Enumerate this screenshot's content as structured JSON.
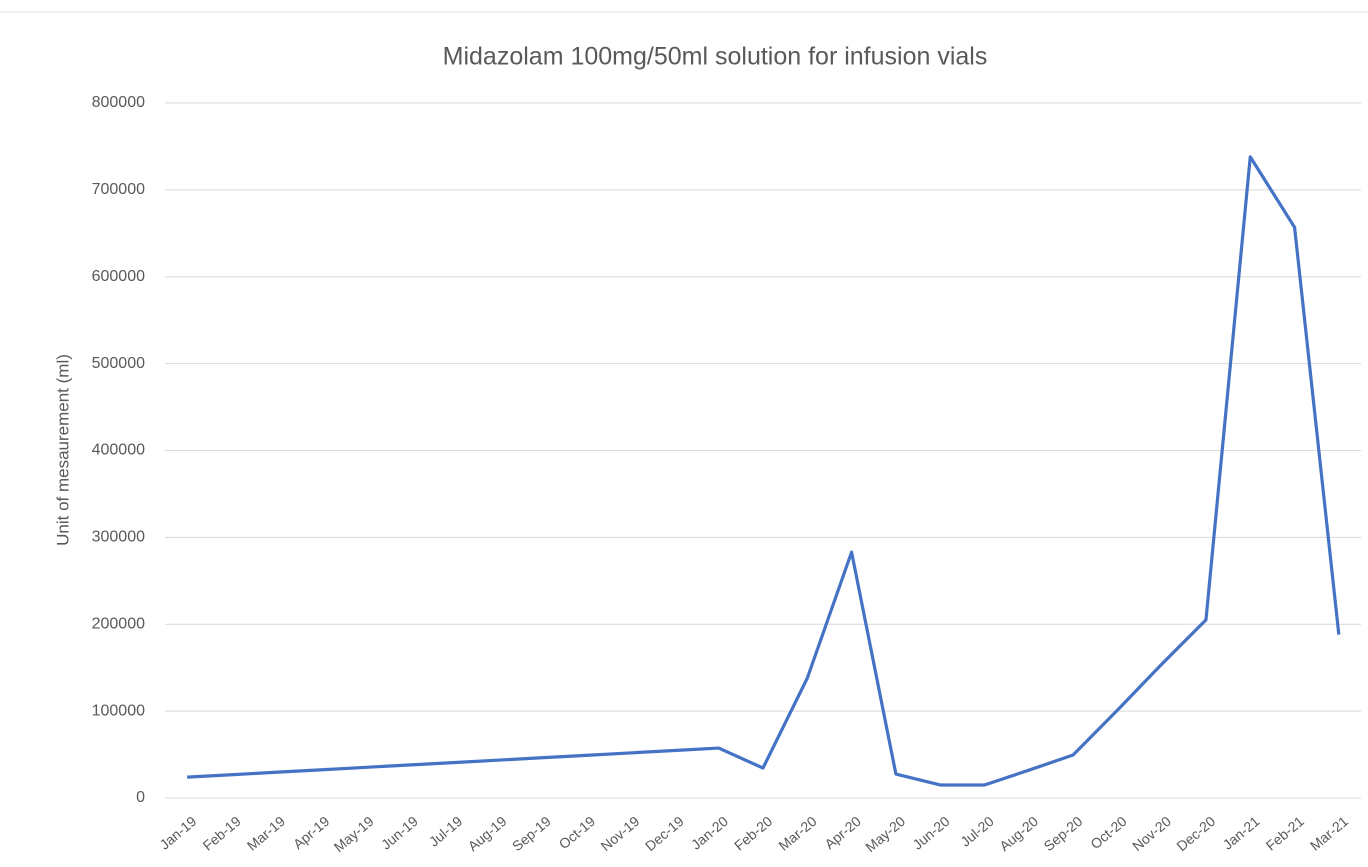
{
  "chart_data": {
    "type": "line",
    "title": "Midazolam 100mg/50ml solution for infusion vials",
    "y_label": "Unit of mesaurement (ml)",
    "categories": [
      "Jan-19",
      "Feb-19",
      "Mar-19",
      "Apr-19",
      "May-19",
      "Jun-19",
      "Jul-19",
      "Aug-19",
      "Sep-19",
      "Oct-19",
      "Nov-19",
      "Dec-19",
      "Jan-20",
      "Feb-20",
      "Mar-20",
      "Apr-20",
      "May-20",
      "Jun-20",
      "Jul-20",
      "Aug-20",
      "Sep-20",
      "Oct-20",
      "Nov-20",
      "Dec-20",
      "Jan-21",
      "Feb-21",
      "Mar-21"
    ],
    "series": [
      {
        "name": "Midazolam 100mg/50ml solution for infusion vials",
        "color": "#4472c4",
        "values": [
          24000,
          26800,
          29600,
          32400,
          35200,
          38000,
          40700,
          43500,
          46300,
          49100,
          51900,
          54700,
          57500,
          34500,
          138000,
          283000,
          27600,
          15000,
          15000,
          32000,
          49500,
          101000,
          154000,
          205000,
          738000,
          657000,
          188000
        ]
      }
    ],
    "ylim": [
      0,
      800000
    ],
    "yticks": [
      0,
      100000,
      200000,
      300000,
      400000,
      500000,
      600000,
      700000,
      800000
    ],
    "grid": true
  }
}
